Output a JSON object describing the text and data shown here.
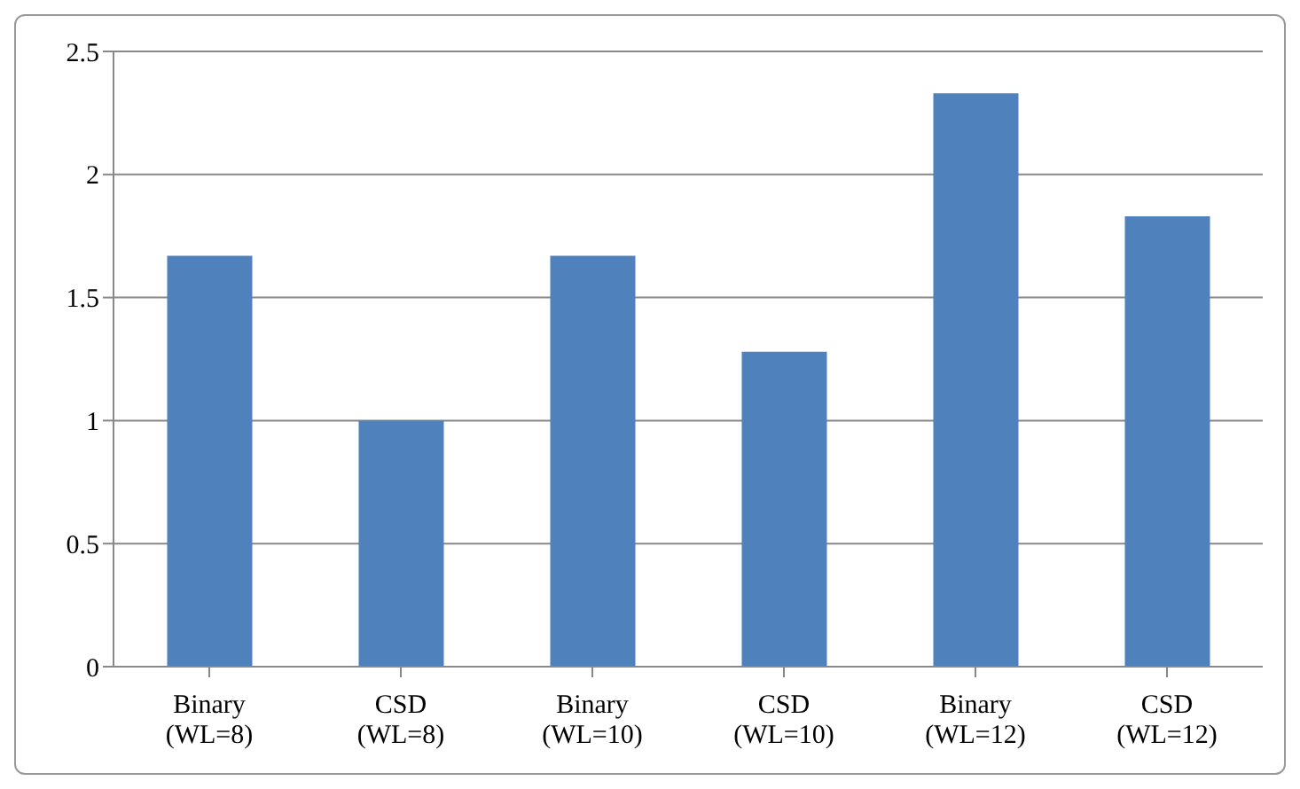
{
  "chart_data": {
    "type": "bar",
    "categories": [
      "Binary\n(WL=8)",
      "CSD\n(WL=8)",
      "Binary\n(WL=10)",
      "CSD\n(WL=10)",
      "Binary\n(WL=12)",
      "CSD\n(WL=12)"
    ],
    "values": [
      1.67,
      1.0,
      1.67,
      1.28,
      2.33,
      1.83
    ],
    "color": "#4f81bd",
    "ylim": [
      0,
      2.5
    ],
    "yticks": [
      0,
      0.5,
      1,
      1.5,
      2,
      2.5
    ],
    "grid": "y"
  }
}
